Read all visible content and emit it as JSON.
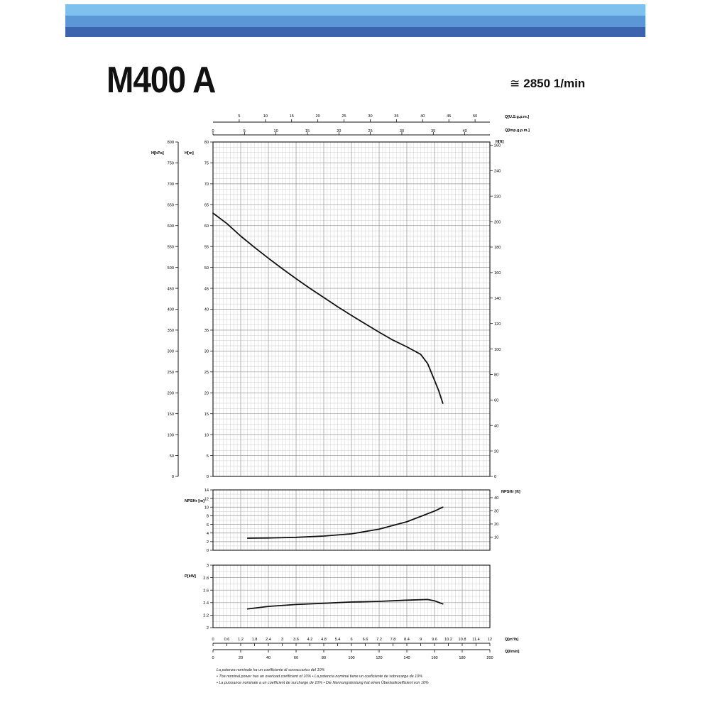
{
  "header": {
    "model": "M400 A",
    "speed_symbol": "≅",
    "speed": "2850 1/min",
    "band_colors": [
      "#7ec1ee",
      "#5b97d6",
      "#3c64ae"
    ]
  },
  "chart_data": [
    {
      "type": "line",
      "name": "head",
      "y_axis_left_outer": {
        "label": "H[kPa]",
        "range": [
          0,
          800
        ],
        "ticks": [
          0,
          50,
          100,
          150,
          200,
          250,
          300,
          350,
          400,
          450,
          500,
          550,
          600,
          650,
          700,
          750,
          800
        ]
      },
      "y_axis_left": {
        "label": "H[m]",
        "range": [
          0,
          80
        ],
        "ticks": [
          0,
          5,
          10,
          15,
          20,
          25,
          30,
          35,
          40,
          45,
          50,
          55,
          60,
          65,
          70,
          75,
          80
        ]
      },
      "y_axis_right": {
        "label": "H[ft]",
        "range": [
          0,
          262.47
        ],
        "ticks": [
          0,
          20,
          40,
          60,
          80,
          100,
          120,
          140,
          160,
          180,
          200,
          220,
          240,
          260
        ]
      },
      "x_axis_top_1": {
        "label": "Q[U.S.g.p.m.]",
        "range": [
          0,
          52.83
        ],
        "ticks": [
          5,
          10,
          15,
          20,
          25,
          30,
          35,
          40,
          45,
          50
        ]
      },
      "x_axis_top_2": {
        "label": "Q[Imp.g.p.m.]",
        "range": [
          0,
          43.99
        ],
        "ticks": [
          0,
          5,
          10,
          15,
          20,
          25,
          30,
          35,
          40
        ]
      },
      "x": [
        0,
        10,
        20,
        30,
        40,
        50,
        60,
        70,
        80,
        90,
        100,
        110,
        120,
        130,
        140,
        150,
        155,
        160,
        163,
        166
      ],
      "y": [
        63,
        60.5,
        57.5,
        54.8,
        52.2,
        49.7,
        47.3,
        45.0,
        42.8,
        40.6,
        38.5,
        36.5,
        34.5,
        32.6,
        31.0,
        29.2,
        27,
        23,
        20.5,
        17.5
      ],
      "grid": true
    },
    {
      "type": "line",
      "name": "npsh",
      "y_axis_left": {
        "label": "NPSHr [m]",
        "range": [
          0,
          14
        ],
        "ticks": [
          0,
          2,
          4,
          6,
          8,
          10,
          12,
          14
        ]
      },
      "y_axis_right": {
        "label": "NPSHr [ft]",
        "range": [
          0,
          45.93
        ],
        "ticks": [
          10,
          20,
          30,
          40
        ]
      },
      "x": [
        25,
        40,
        60,
        80,
        100,
        120,
        140,
        160,
        166
      ],
      "y": [
        2.8,
        2.85,
        3.0,
        3.3,
        3.8,
        4.9,
        6.6,
        9.1,
        10.0
      ],
      "grid": true
    },
    {
      "type": "line",
      "name": "power",
      "y_axis_left": {
        "label": "P[kW]",
        "range": [
          2.0,
          3.0
        ],
        "ticks": [
          2,
          2.2,
          2.4,
          2.6,
          2.8,
          3
        ]
      },
      "x": [
        25,
        40,
        60,
        80,
        100,
        120,
        140,
        155,
        160,
        166
      ],
      "y": [
        2.3,
        2.34,
        2.37,
        2.39,
        2.41,
        2.42,
        2.44,
        2.45,
        2.43,
        2.38
      ],
      "x_axis_bottom_1": {
        "label": "Q[m³/h]",
        "range": [
          0,
          12
        ],
        "ticks": [
          0,
          0.6,
          1.2,
          1.8,
          2.4,
          3,
          3.6,
          4.2,
          4.8,
          5.4,
          6,
          6.6,
          7.2,
          7.8,
          8.4,
          9,
          9.6,
          10.2,
          10.8,
          11.4,
          12
        ]
      },
      "x_axis_bottom_2": {
        "label": "Q[l/min]",
        "range": [
          0,
          200
        ],
        "ticks": [
          0,
          20,
          40,
          60,
          80,
          100,
          120,
          140,
          160,
          180,
          200
        ]
      },
      "grid": true
    }
  ],
  "notes": [
    "La potenza nominale ha un coefficiente di sovraccarico del 10%",
    "• The nominal power has an overload coefficient of 10%  • La potencia nominal tiene un coeficiente de sobrecarga de 10%",
    "• La puissance nominale a un coefficient de surcharge de 10%  • Die Nennungsleistung hat einen Überlastkoeffizient von 10%"
  ]
}
